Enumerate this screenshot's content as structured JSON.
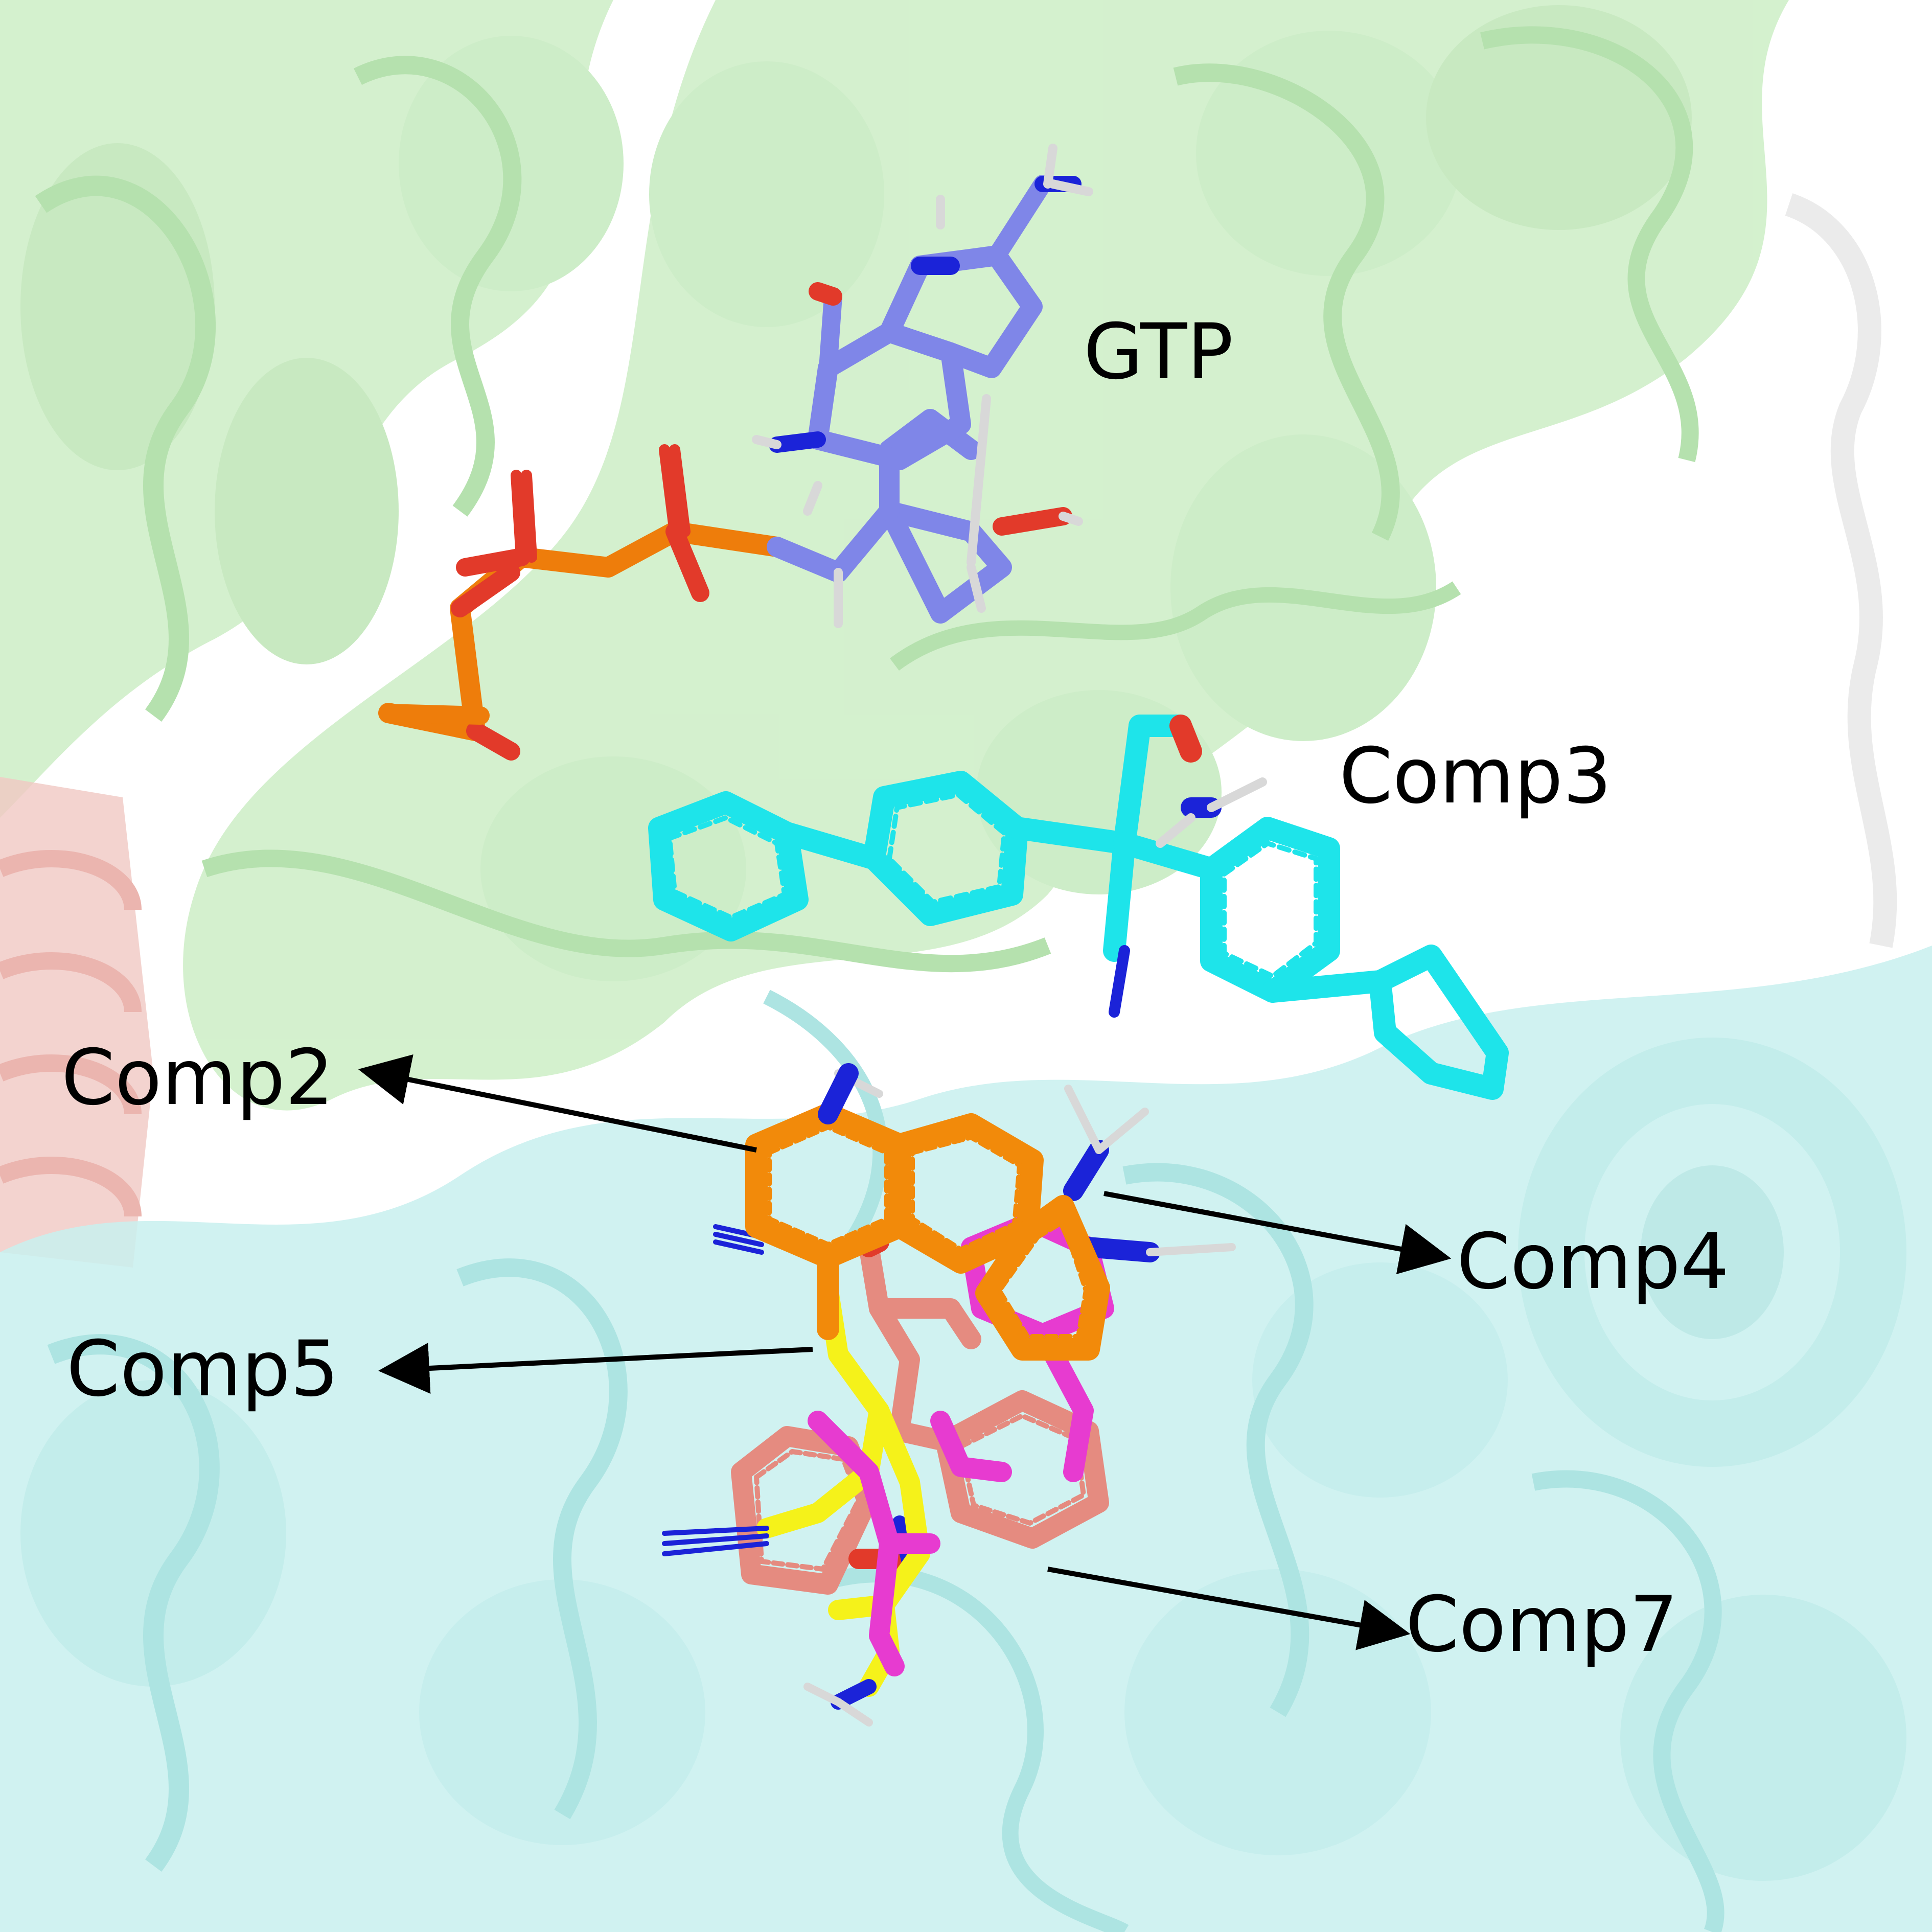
{
  "labels": {
    "gtp": "GTP",
    "comp3": "Comp3",
    "comp2": "Comp2",
    "comp4": "Comp4",
    "comp5": "Comp5",
    "comp7": "Comp7"
  },
  "colors": {
    "background": "#ffffff",
    "protein_green": "#cdeec6",
    "protein_green_dark": "#a9dca0",
    "protein_cyan": "#c8f0ef",
    "protein_cyan_dark": "#9fe0dd",
    "protein_red": "#f1c9c4",
    "gtp_carbon": "#7f86e8",
    "phosphorus": "#ee7d0b",
    "oxygen": "#e23a2a",
    "nitrogen": "#1b23d8",
    "hydrogen": "#d8d8d8",
    "comp3_carbon": "#1ee4ea",
    "comp2_carbon": "#f28a0a",
    "comp4_carbon": "#e73bd0",
    "comp5_carbon": "#f5f21a",
    "comp7_carbon": "#e58b80",
    "arrow": "#000000"
  }
}
